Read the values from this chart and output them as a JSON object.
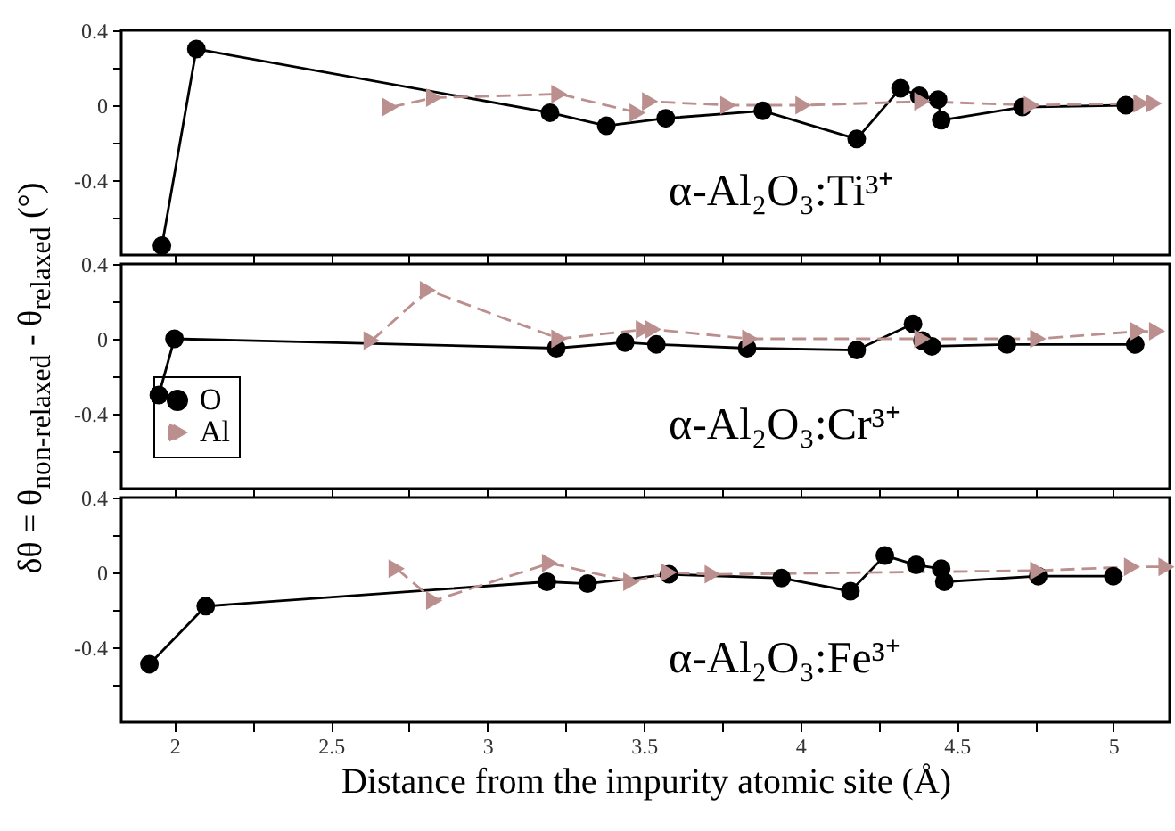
{
  "chart_data": [
    {
      "type": "line",
      "xlim": [
        1.83,
        5.18
      ],
      "ylim": [
        -0.8,
        0.4
      ],
      "xticks": [
        2,
        {
          "value": 2.25,
          "label": null
        },
        2.5,
        {
          "value": 2.75,
          "label": null
        },
        3,
        {
          "value": 3.25,
          "label": null
        },
        3.5,
        {
          "value": 3.75,
          "label": null
        },
        4,
        {
          "value": 4.25,
          "label": null
        },
        4.5,
        {
          "value": 4.75,
          "label": null
        },
        5
      ],
      "yticks": [
        {
          "value": -0.6,
          "label": null
        },
        -0.4,
        {
          "value": -0.2,
          "label": null
        },
        0,
        {
          "value": 0.2,
          "label": null
        },
        0.4
      ],
      "tick_labels": "y",
      "grid": false,
      "legend": false,
      "annotations": [
        "α-Al₂O₃:Ti³⁺"
      ],
      "series": [
        {
          "color": "#000000",
          "marker": "circle",
          "line_style": "solid",
          "x": [
            1.96,
            2.07,
            3.2,
            3.38,
            3.57,
            3.88,
            4.18,
            4.32,
            4.38,
            4.44,
            4.45,
            4.71,
            5.04
          ],
          "values": [
            -0.75,
            0.3,
            -0.04,
            -0.11,
            -0.07,
            -0.03,
            -0.18,
            0.09,
            0.05,
            0.03,
            -0.08,
            -0.01,
            0.0
          ]
        },
        {
          "color": "#bc8f8f",
          "marker": "triangle",
          "line_style": "dashed",
          "x": [
            2.69,
            2.83,
            3.23,
            3.48,
            3.52,
            3.77,
            4.01,
            4.39,
            4.74,
            5.09,
            5.13
          ],
          "values": [
            -0.01,
            0.04,
            0.06,
            -0.04,
            0.02,
            0.0,
            0.0,
            0.02,
            0.0,
            0.01,
            0.01
          ]
        }
      ]
    },
    {
      "type": "line",
      "xlim": [
        1.83,
        5.18
      ],
      "ylim": [
        -0.8,
        0.4
      ],
      "xticks": [
        2,
        {
          "value": 2.25,
          "label": null
        },
        2.5,
        {
          "value": 2.75,
          "label": null
        },
        3,
        {
          "value": 3.25,
          "label": null
        },
        3.5,
        {
          "value": 3.75,
          "label": null
        },
        4,
        {
          "value": 4.25,
          "label": null
        },
        4.5,
        {
          "value": 4.75,
          "label": null
        },
        5
      ],
      "yticks": [
        {
          "value": -0.6,
          "label": null
        },
        -0.4,
        {
          "value": -0.2,
          "label": null
        },
        0,
        {
          "value": 0.2,
          "label": null
        },
        0.4
      ],
      "tick_labels": "y",
      "grid": false,
      "legend": "bottom left",
      "ylabel": "δθ = θ$_{non-relaxed}$ - θ$_{relaxed}$ (°)",
      "annotations": [
        "α-Al₂O₃:Cr³⁺"
      ],
      "series": [
        {
          "name": "O",
          "color": "#000000",
          "marker": "circle",
          "line_style": "solid",
          "x": [
            1.95,
            2.0,
            3.22,
            3.44,
            3.54,
            3.83,
            4.18,
            4.36,
            4.39,
            4.42,
            4.66,
            5.07
          ],
          "values": [
            -0.3,
            0.0,
            -0.05,
            -0.02,
            -0.03,
            -0.05,
            -0.06,
            0.08,
            -0.01,
            -0.04,
            -0.03,
            -0.03
          ]
        },
        {
          "name": "Al",
          "color": "#bc8f8f",
          "marker": "triangle",
          "line_style": "dashed",
          "x": [
            2.63,
            2.81,
            3.23,
            3.5,
            3.53,
            3.84,
            4.39,
            4.76,
            5.08,
            5.14
          ],
          "values": [
            -0.01,
            0.26,
            0.0,
            0.05,
            0.05,
            0.0,
            0.0,
            0.0,
            0.04,
            0.04
          ]
        }
      ]
    },
    {
      "type": "line",
      "xlim": [
        1.83,
        5.18
      ],
      "ylim": [
        -0.8,
        0.4
      ],
      "xticks": [
        2,
        {
          "value": 2.25,
          "label": null
        },
        2.5,
        {
          "value": 2.75,
          "label": null
        },
        3,
        {
          "value": 3.25,
          "label": null
        },
        3.5,
        {
          "value": 3.75,
          "label": null
        },
        4,
        {
          "value": 4.25,
          "label": null
        },
        4.5,
        {
          "value": 4.75,
          "label": null
        },
        5
      ],
      "yticks": [
        {
          "value": -0.6,
          "label": null
        },
        -0.4,
        {
          "value": -0.2,
          "label": null
        },
        0,
        {
          "value": 0.2,
          "label": null
        },
        0.4
      ],
      "grid": false,
      "legend": false,
      "xlabel": "Distance from the impurity atomic site (Å)",
      "annotations": [
        "α-Al₂O₃:Fe³⁺"
      ],
      "series": [
        {
          "color": "#000000",
          "marker": "circle",
          "line_style": "solid",
          "x": [
            1.92,
            2.1,
            3.19,
            3.32,
            3.58,
            3.94,
            4.16,
            4.27,
            4.37,
            4.45,
            4.46,
            4.76,
            5.0
          ],
          "values": [
            -0.49,
            -0.18,
            -0.05,
            -0.06,
            -0.01,
            -0.03,
            -0.1,
            0.09,
            0.04,
            0.02,
            -0.05,
            -0.02,
            -0.02
          ]
        },
        {
          "color": "#bc8f8f",
          "marker": "triangle",
          "line_style": "dashed",
          "x": [
            2.71,
            2.83,
            3.2,
            3.46,
            3.58,
            3.72,
            4.76,
            5.06,
            5.17
          ],
          "values": [
            0.02,
            -0.15,
            0.05,
            -0.05,
            0.0,
            -0.01,
            0.01,
            0.03,
            0.03
          ]
        }
      ]
    }
  ]
}
